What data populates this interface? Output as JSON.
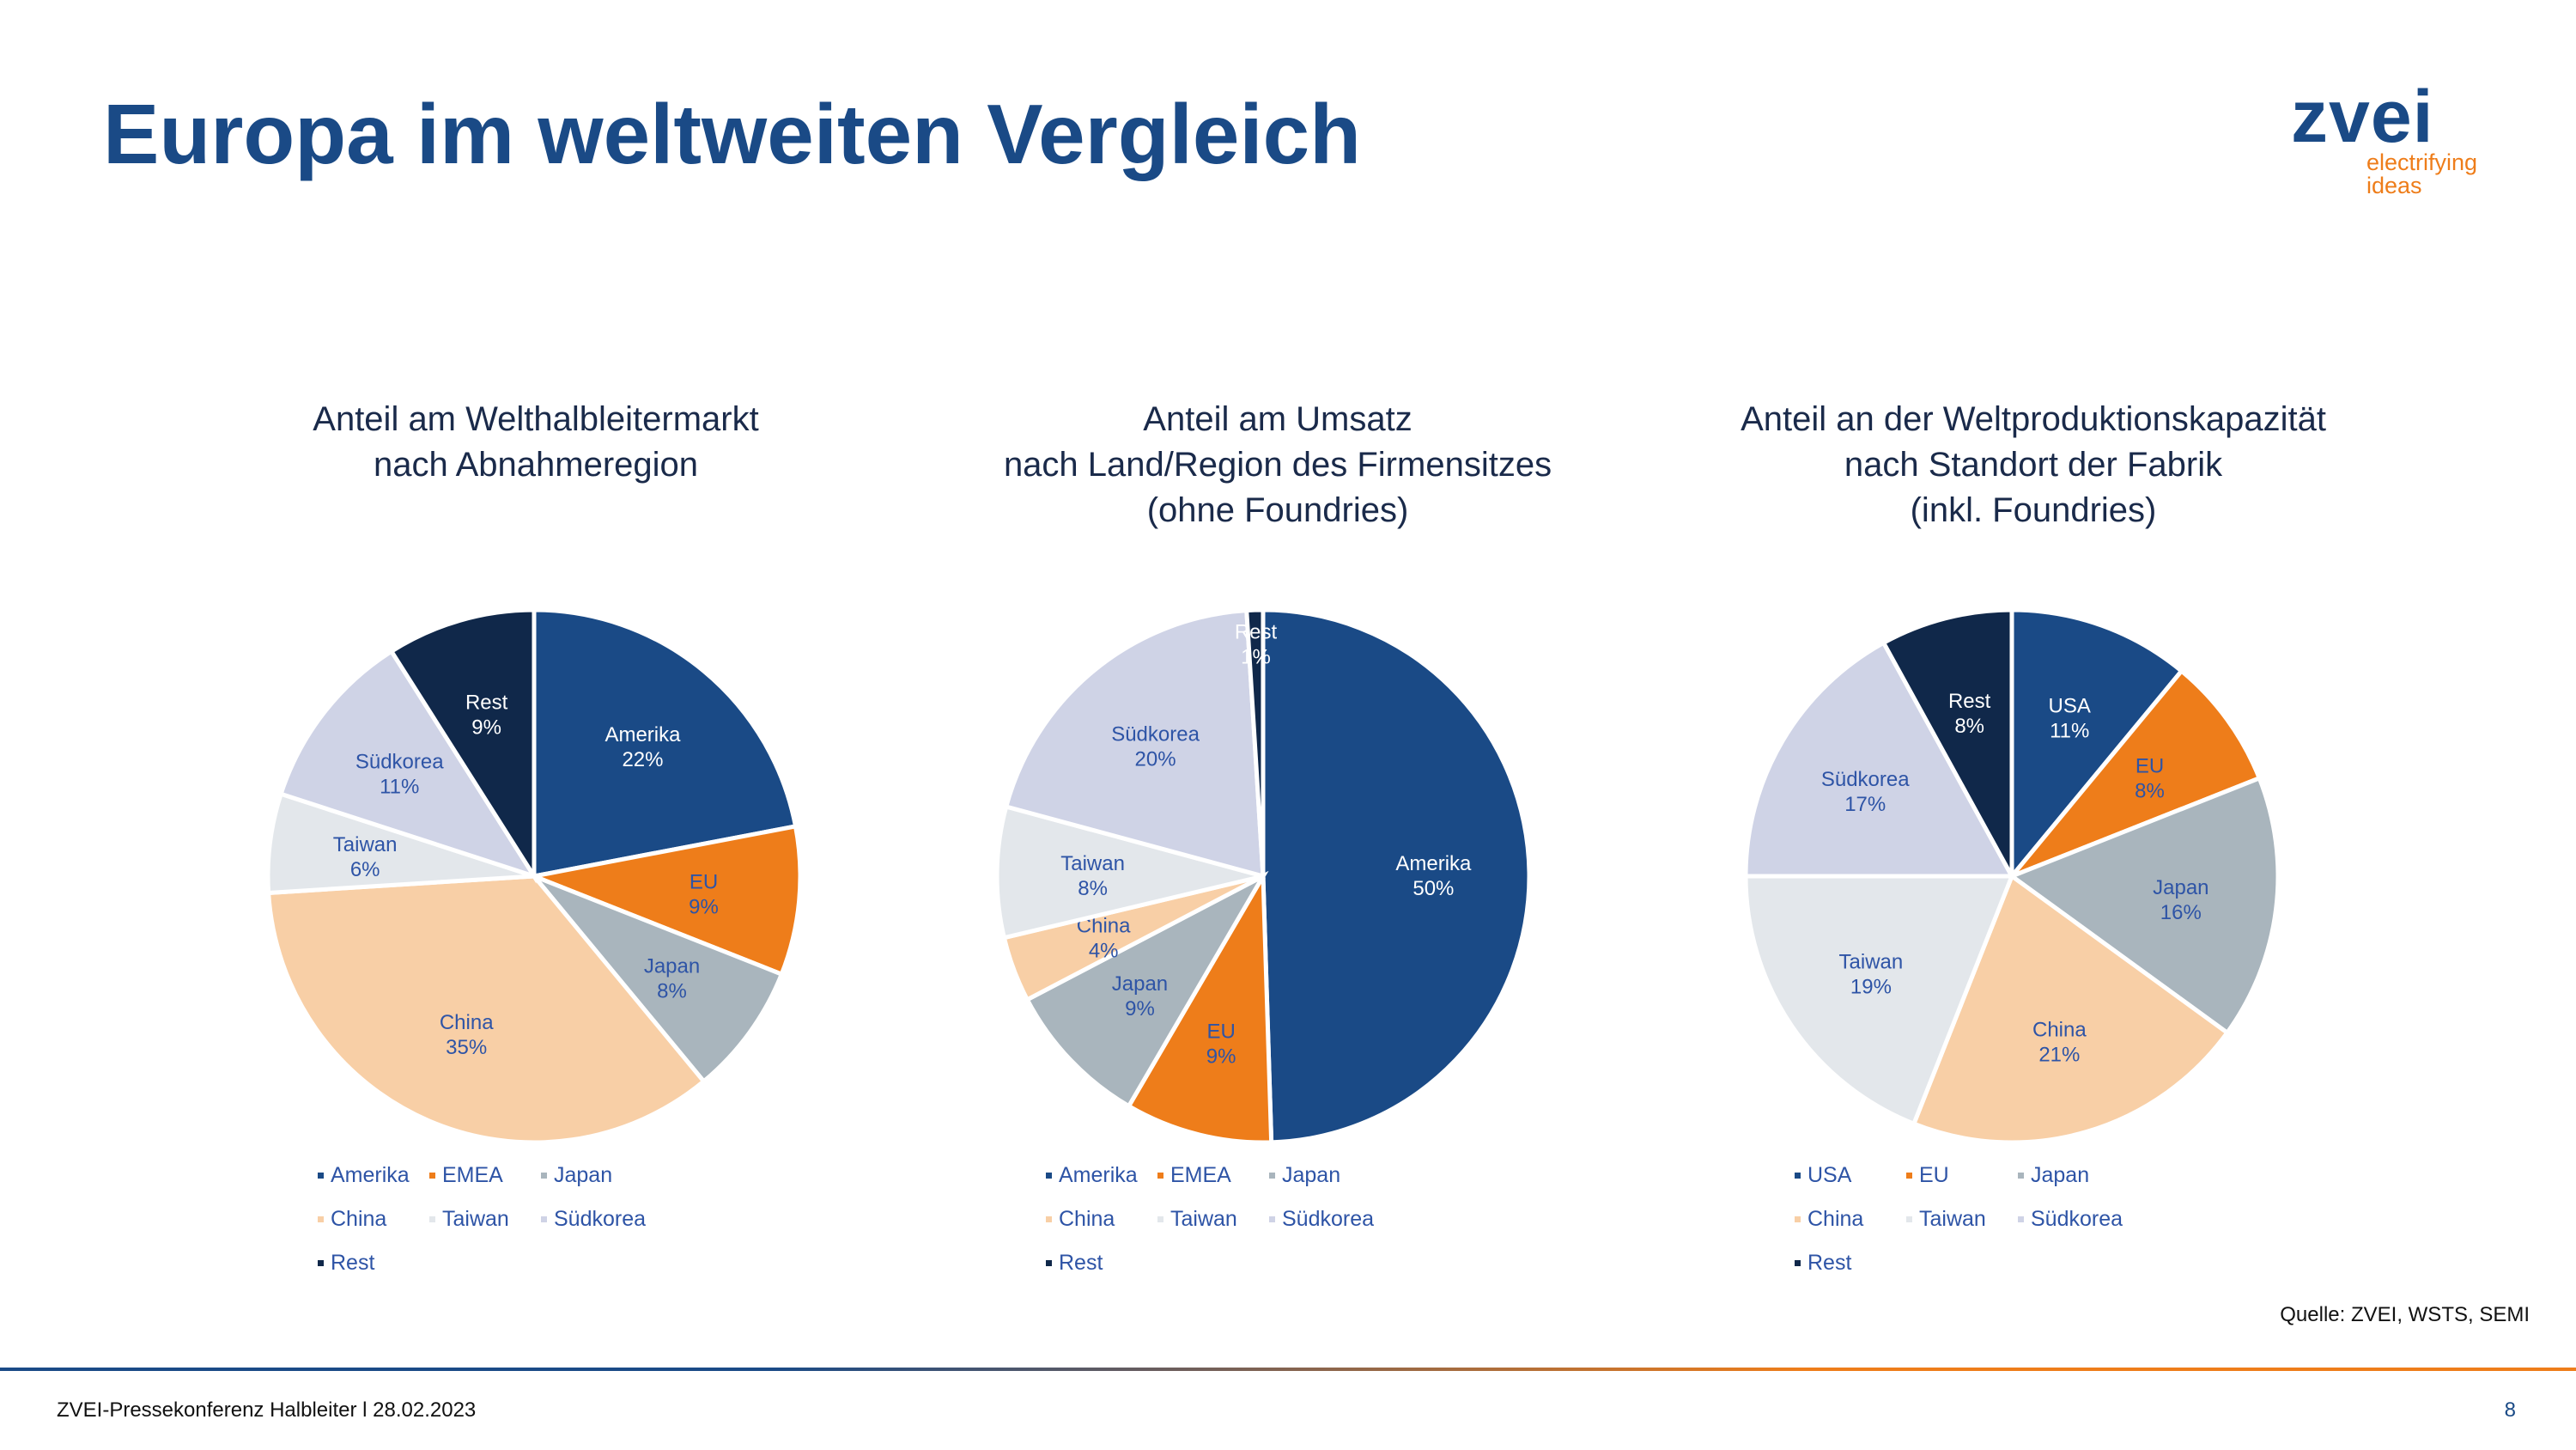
{
  "slide": {
    "title": "Europa im weltweiten Vergleich",
    "logo": {
      "mark": "zvei",
      "tagline_1": "electrifying",
      "tagline_2": "ideas"
    },
    "source": "Quelle: ZVEI, WSTS, SEMI",
    "footer": "ZVEI-Pressekonferenz Halbleiter l 28.02.2023",
    "page_number": "8"
  },
  "colors": {
    "blue": "#1a4a86",
    "orange": "#ee7d1a",
    "grey": "#a9b5bd",
    "peach": "#f8cfa6",
    "light": "#e3e7eb",
    "lavender": "#cfd3e6",
    "navy": "#10284a",
    "label_dark": "#2e54a6",
    "label_light": "#ffffff"
  },
  "chart_data": [
    {
      "type": "pie",
      "title_lines": [
        "Anteil am Welthalbleitermarkt",
        "nach Abnahmeregion"
      ],
      "slices": [
        {
          "label": "Amerika",
          "value": 22,
          "color": "#1a4a86",
          "text": "#ffffff"
        },
        {
          "label": "EU",
          "value": 9,
          "color": "#ee7d1a",
          "text": "#2e54a6"
        },
        {
          "label": "Japan",
          "value": 8,
          "color": "#a9b5bd",
          "text": "#2e54a6"
        },
        {
          "label": "China",
          "value": 35,
          "color": "#f8cfa6",
          "text": "#2e54a6"
        },
        {
          "label": "Taiwan",
          "value": 6,
          "color": "#e3e7eb",
          "text": "#2e54a6"
        },
        {
          "label": "Südkorea",
          "value": 11,
          "color": "#cfd3e6",
          "text": "#2e54a6"
        },
        {
          "label": "Rest",
          "value": 9,
          "color": "#10284a",
          "text": "#ffffff"
        }
      ],
      "legend": [
        "Amerika",
        "EMEA",
        "Japan",
        "China",
        "Taiwan",
        "Südkorea",
        "Rest"
      ],
      "legend_position": "bottom"
    },
    {
      "type": "pie",
      "title_lines": [
        "Anteil am Umsatz",
        "nach Land/Region des Firmensitzes",
        "(ohne Foundries)"
      ],
      "slices": [
        {
          "label": "Amerika",
          "value": 50,
          "color": "#1a4a86",
          "text": "#ffffff"
        },
        {
          "label": "EU",
          "value": 9,
          "color": "#ee7d1a",
          "text": "#2e54a6"
        },
        {
          "label": "Japan",
          "value": 9,
          "color": "#a9b5bd",
          "text": "#2e54a6"
        },
        {
          "label": "China",
          "value": 4,
          "color": "#f8cfa6",
          "text": "#2e54a6"
        },
        {
          "label": "Taiwan",
          "value": 8,
          "color": "#e3e7eb",
          "text": "#2e54a6"
        },
        {
          "label": "Südkorea",
          "value": 20,
          "color": "#cfd3e6",
          "text": "#2e54a6"
        },
        {
          "label": "Rest",
          "value": 1,
          "color": "#10284a",
          "text": "#ffffff"
        }
      ],
      "legend": [
        "Amerika",
        "EMEA",
        "Japan",
        "China",
        "Taiwan",
        "Südkorea",
        "Rest"
      ],
      "legend_position": "bottom"
    },
    {
      "type": "pie",
      "title_lines": [
        "Anteil an der Weltproduktionskapazität",
        "nach Standort der Fabrik",
        "(inkl. Foundries)"
      ],
      "slices": [
        {
          "label": "USA",
          "value": 11,
          "color": "#1a4a86",
          "text": "#ffffff"
        },
        {
          "label": "EU",
          "value": 8,
          "color": "#ee7d1a",
          "text": "#2e54a6"
        },
        {
          "label": "Japan",
          "value": 16,
          "color": "#a9b5bd",
          "text": "#2e54a6"
        },
        {
          "label": "China",
          "value": 21,
          "color": "#f8cfa6",
          "text": "#2e54a6"
        },
        {
          "label": "Taiwan",
          "value": 19,
          "color": "#e3e7eb",
          "text": "#2e54a6"
        },
        {
          "label": "Südkorea",
          "value": 17,
          "color": "#cfd3e6",
          "text": "#2e54a6"
        },
        {
          "label": "Rest",
          "value": 8,
          "color": "#10284a",
          "text": "#ffffff"
        }
      ],
      "legend": [
        "USA",
        "EU",
        "Japan",
        "China",
        "Taiwan",
        "Südkorea",
        "Rest"
      ],
      "legend_position": "bottom"
    }
  ]
}
